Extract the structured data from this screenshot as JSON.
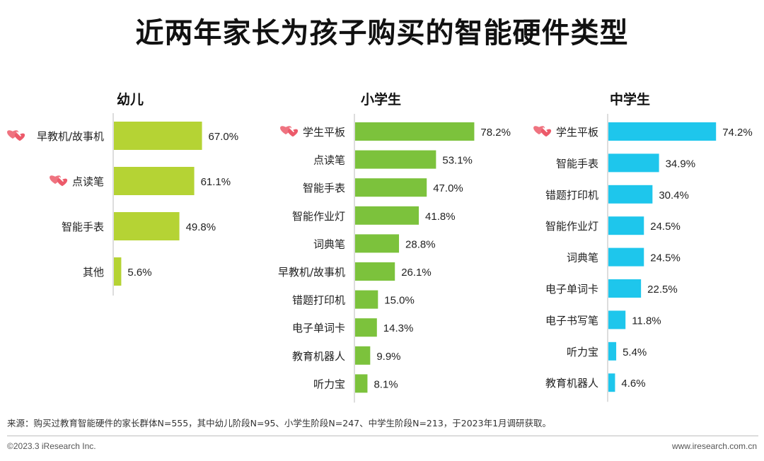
{
  "title": "近两年家长为孩子购买的智能硬件类型",
  "colors": {
    "kindergarten": "#b5d334",
    "primary": "#7cc23c",
    "middle": "#1ec6ec",
    "heart": "#ec5a6a",
    "axis": "#bbbbbb"
  },
  "chart_data": [
    {
      "type": "bar",
      "orientation": "horizontal",
      "title": "幼儿",
      "categories": [
        "早教机/故事机",
        "点读笔",
        "智能手表",
        "其他"
      ],
      "values": [
        67.0,
        61.1,
        49.8,
        5.6
      ],
      "labels": [
        "67.0%",
        "61.1%",
        "49.8%",
        "5.6%"
      ],
      "highlighted": [
        "早教机/故事机",
        "点读笔"
      ],
      "highlight_icon": "heart-icon",
      "unit": "%"
    },
    {
      "type": "bar",
      "orientation": "horizontal",
      "title": "小学生",
      "categories": [
        "学生平板",
        "点读笔",
        "智能手表",
        "智能作业灯",
        "词典笔",
        "早教机/故事机",
        "错题打印机",
        "电子单词卡",
        "教育机器人",
        "听力宝"
      ],
      "values": [
        78.2,
        53.1,
        47.0,
        41.8,
        28.8,
        26.1,
        15.0,
        14.3,
        9.9,
        8.1
      ],
      "labels": [
        "78.2%",
        "53.1%",
        "47.0%",
        "41.8%",
        "28.8%",
        "26.1%",
        "15.0%",
        "14.3%",
        "9.9%",
        "8.1%"
      ],
      "highlighted": [
        "学生平板"
      ],
      "highlight_icon": "heart-icon",
      "unit": "%"
    },
    {
      "type": "bar",
      "orientation": "horizontal",
      "title": "中学生",
      "categories": [
        "学生平板",
        "智能手表",
        "错题打印机",
        "智能作业灯",
        "词典笔",
        "电子单词卡",
        "电子书写笔",
        "听力宝",
        "教育机器人"
      ],
      "values": [
        74.2,
        34.9,
        30.4,
        24.5,
        24.5,
        22.5,
        11.8,
        5.4,
        4.6
      ],
      "labels": [
        "74.2%",
        "34.9%",
        "30.4%",
        "24.5%",
        "24.5%",
        "22.5%",
        "11.8%",
        "5.4%",
        "4.6%"
      ],
      "highlighted": [
        "学生平板"
      ],
      "highlight_icon": "heart-icon",
      "unit": "%"
    }
  ],
  "footer": {
    "source": "来源：购买过教育智能硬件的家长群体N=555，其中幼儿阶段N=95、小学生阶段N=247、中学生阶段N=213，于2023年1月调研获取。",
    "copyright": "©2023.3 iResearch Inc.",
    "website": "www.iresearch.com.cn"
  }
}
